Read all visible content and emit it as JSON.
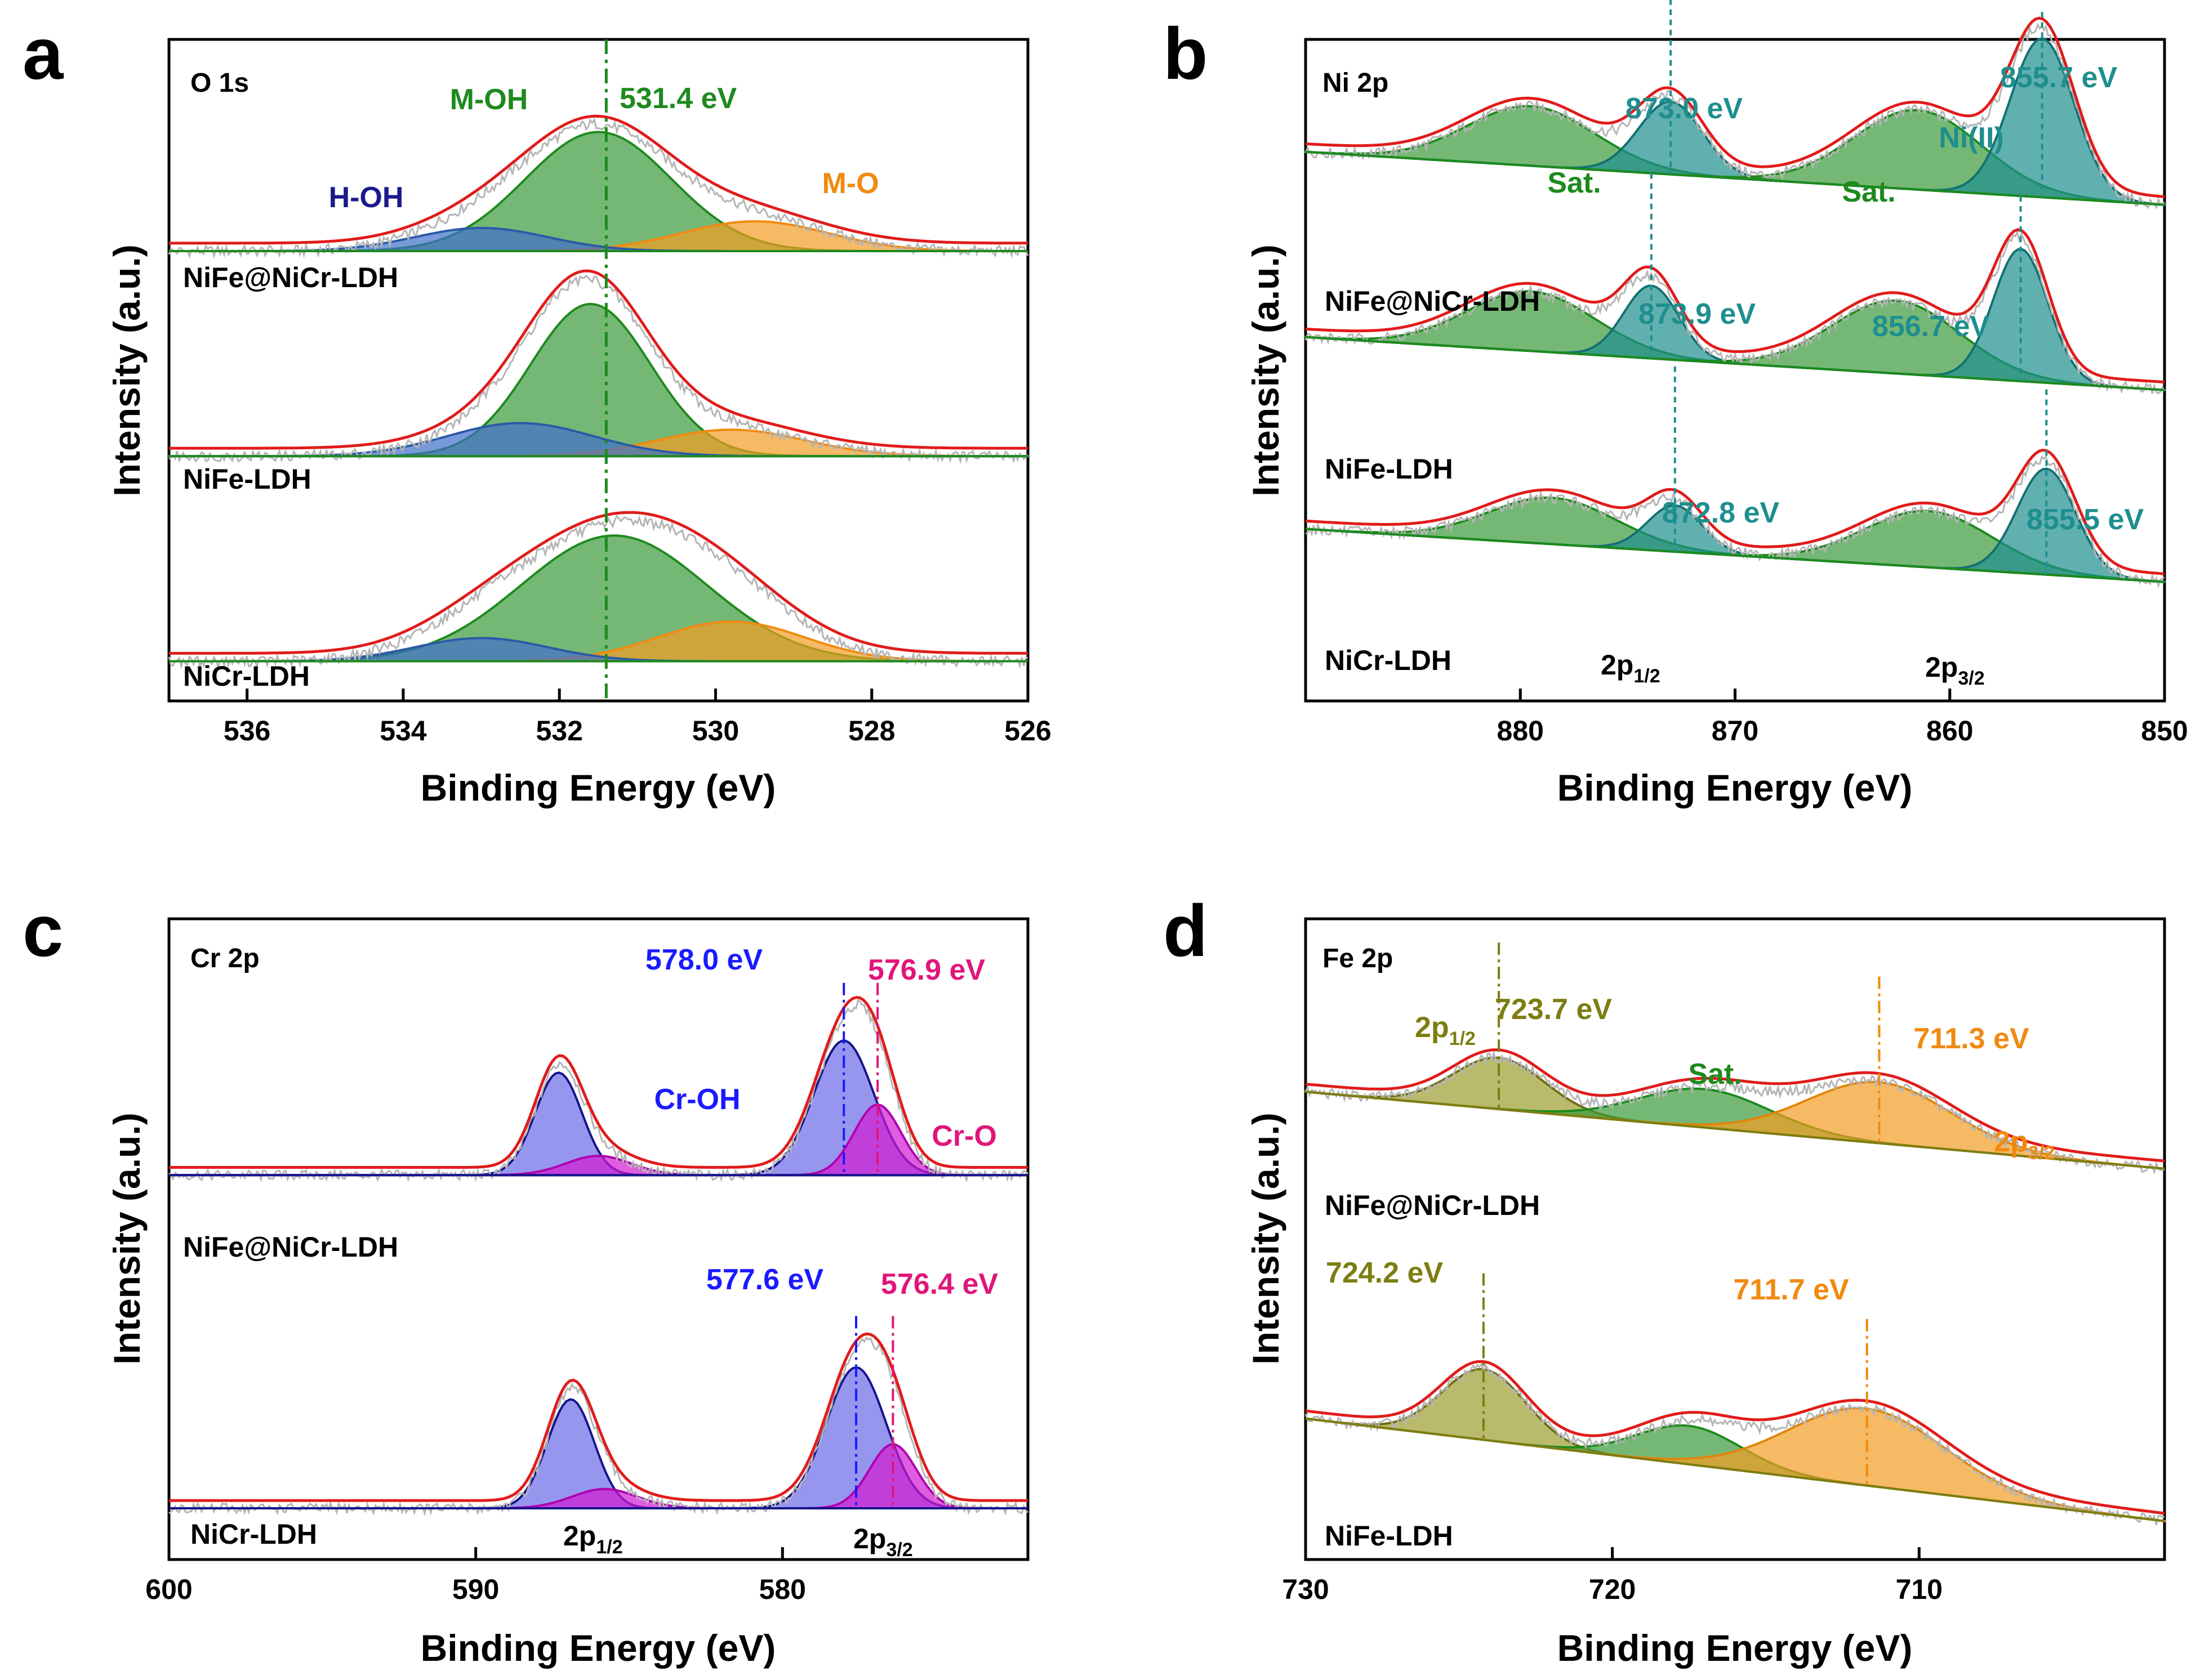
{
  "figure": {
    "y_axis_label": "Intensity (a.u.)",
    "x_axis_label": "Binding Energy (eV)"
  },
  "colors": {
    "envelope": "#e11b1b",
    "raw": "#b5b5b5",
    "baseline_green": "#1d8a1d",
    "baseline_olive": "#7d7d12",
    "green_fill": "#3a9a3a",
    "teal_fill": "#1e8e8e",
    "orange_fill": "#f39c22",
    "blue_fill": "#6a6ae8",
    "magenta_fill": "#d21ad2",
    "olive_fill": "#9c9c2e",
    "navy_text": "#1a1a8c",
    "green_text": "#1d8a1d",
    "teal_text": "#1e8e8e",
    "orange_text": "#f08a10",
    "blue_text": "#1a1aff",
    "magenta_text": "#e0157a",
    "olive_text": "#7d7d12"
  },
  "chart_data": [
    {
      "id": "a",
      "type": "line",
      "panel_letter": "a",
      "title": "O 1s",
      "xlabel": "Binding Energy (eV)",
      "ylabel": "Intensity (a.u.)",
      "xlim": [
        537,
        526
      ],
      "ylim": [
        0,
        100
      ],
      "xticks": [
        536,
        534,
        532,
        530,
        528,
        526
      ],
      "xtick_labels": [
        "536",
        "534",
        "532",
        "530",
        "528",
        "526"
      ],
      "ref_line": {
        "x": 531.4,
        "label": "531.4 eV",
        "color": "#1d8a1d",
        "dash": "dashdot"
      },
      "offsets": [
        {
          "sample": "NiFe@NiCr-LDH",
          "y": 68
        },
        {
          "sample": "NiFe-LDH",
          "y": 37
        },
        {
          "sample": "NiCr-LDH",
          "y": 6
        }
      ],
      "peak_labels": [
        {
          "text": "H-OH",
          "color": "#1a1a8c"
        },
        {
          "text": "M-OH",
          "color": "#1d8a1d"
        },
        {
          "text": "M-O",
          "color": "#f08a10"
        }
      ],
      "series": [
        {
          "name": "NiFe@NiCr-LDH",
          "offset": 68,
          "baseline": [
            0,
            0
          ],
          "peaks": [
            {
              "center": 531.5,
              "fwhm": 2.2,
              "height": 18,
              "fill": "#3a9a3a",
              "stroke": "#1d8a1d"
            },
            {
              "center": 529.5,
              "fwhm": 2.2,
              "height": 4.5,
              "fill": "#f39c22",
              "stroke": "#f08a10"
            },
            {
              "center": 533.0,
              "fwhm": 2.0,
              "height": 3.5,
              "fill": "#3e6fc9",
              "stroke": "#2a5aa8"
            }
          ]
        },
        {
          "name": "NiFe-LDH",
          "offset": 37,
          "baseline": [
            0,
            0
          ],
          "peaks": [
            {
              "center": 531.6,
              "fwhm": 1.8,
              "height": 23,
              "fill": "#3a9a3a",
              "stroke": "#1d8a1d"
            },
            {
              "center": 529.8,
              "fwhm": 2.2,
              "height": 4,
              "fill": "#f39c22",
              "stroke": "#f08a10"
            },
            {
              "center": 532.5,
              "fwhm": 2.2,
              "height": 5,
              "fill": "#3e6fc9",
              "stroke": "#2a5aa8"
            }
          ]
        },
        {
          "name": "NiCr-LDH",
          "offset": 6,
          "baseline": [
            0,
            0
          ],
          "peaks": [
            {
              "center": 531.3,
              "fwhm": 2.8,
              "height": 19,
              "fill": "#3a9a3a",
              "stroke": "#1d8a1d"
            },
            {
              "center": 529.8,
              "fwhm": 2.2,
              "height": 6,
              "fill": "#f39c22",
              "stroke": "#f08a10"
            },
            {
              "center": 533.0,
              "fwhm": 2.0,
              "height": 3.5,
              "fill": "#3e6fc9",
              "stroke": "#2a5aa8"
            }
          ]
        }
      ]
    },
    {
      "id": "b",
      "type": "line",
      "panel_letter": "b",
      "title": "Ni 2p",
      "xlabel": "Binding Energy (eV)",
      "ylabel": "Intensity (a.u.)",
      "xlim": [
        890,
        850
      ],
      "ylim": [
        0,
        100
      ],
      "xticks": [
        880,
        870,
        860,
        850
      ],
      "xtick_labels": [
        "880",
        "870",
        "860",
        "850"
      ],
      "offsets": [
        {
          "sample": "NiFe@NiCr-LDH",
          "y": 75
        },
        {
          "sample": "NiFe-LDH",
          "y": 47
        },
        {
          "sample": "NiCr-LDH",
          "y": 18
        }
      ],
      "spin_labels": [
        "2p1/2",
        "2p3/2"
      ],
      "text_labels": [
        {
          "text": "Sat.",
          "color": "#1d8a1d"
        },
        {
          "text": "Sat.",
          "color": "#1d8a1d"
        },
        {
          "text": "Ni(II)",
          "color": "#1e8e8e"
        }
      ],
      "energy_labels": [
        {
          "text": "873.0 eV",
          "x": 873.0,
          "color": "#1e8e8e"
        },
        {
          "text": "855.7 eV",
          "x": 855.7,
          "color": "#1e8e8e"
        },
        {
          "text": "873.9 eV",
          "x": 873.9,
          "color": "#1e8e8e"
        },
        {
          "text": "856.7 eV",
          "x": 856.7,
          "color": "#1e8e8e"
        },
        {
          "text": "872.8 eV",
          "x": 872.8,
          "color": "#1e8e8e"
        },
        {
          "text": "855.5 eV",
          "x": 855.5,
          "color": "#1e8e8e"
        }
      ],
      "series": [
        {
          "name": "NiFe@NiCr-LDH",
          "offset": 75,
          "baseline": [
            8,
            0
          ],
          "peaks": [
            {
              "center": 879.5,
              "fwhm": 7,
              "height": 9,
              "fill": "#3a9a3a",
              "stroke": "#1d8a1d"
            },
            {
              "center": 873.0,
              "fwhm": 3.5,
              "height": 11,
              "fill": "#1e8e8e",
              "stroke": "#137070"
            },
            {
              "center": 861.5,
              "fwhm": 7,
              "height": 12,
              "fill": "#3a9a3a",
              "stroke": "#1d8a1d"
            },
            {
              "center": 855.7,
              "fwhm": 3.5,
              "height": 24,
              "fill": "#1e8e8e",
              "stroke": "#137070"
            }
          ]
        },
        {
          "name": "NiFe-LDH",
          "offset": 47,
          "baseline": [
            8,
            0
          ],
          "peaks": [
            {
              "center": 879.5,
              "fwhm": 7,
              "height": 9,
              "fill": "#3a9a3a",
              "stroke": "#1d8a1d"
            },
            {
              "center": 873.9,
              "fwhm": 3,
              "height": 11,
              "fill": "#1e8e8e",
              "stroke": "#137070"
            },
            {
              "center": 862.5,
              "fwhm": 7,
              "height": 11,
              "fill": "#3a9a3a",
              "stroke": "#1d8a1d"
            },
            {
              "center": 856.7,
              "fwhm": 3,
              "height": 20,
              "fill": "#1e8e8e",
              "stroke": "#137070"
            }
          ]
        },
        {
          "name": "NiCr-LDH",
          "offset": 18,
          "baseline": [
            8,
            0
          ],
          "peaks": [
            {
              "center": 878.5,
              "fwhm": 7,
              "height": 7,
              "fill": "#3a9a3a",
              "stroke": "#1d8a1d"
            },
            {
              "center": 872.8,
              "fwhm": 3,
              "height": 7,
              "fill": "#1e8e8e",
              "stroke": "#137070"
            },
            {
              "center": 861.0,
              "fwhm": 7,
              "height": 8.5,
              "fill": "#3a9a3a",
              "stroke": "#1d8a1d"
            },
            {
              "center": 855.5,
              "fwhm": 3.2,
              "height": 16,
              "fill": "#1e8e8e",
              "stroke": "#137070"
            }
          ]
        }
      ]
    },
    {
      "id": "c",
      "type": "line",
      "panel_letter": "c",
      "title": "Cr 2p",
      "xlabel": "Binding Energy (eV)",
      "ylabel": "Intensity (a.u.)",
      "xlim": [
        600,
        572
      ],
      "ylim": [
        0,
        100
      ],
      "xticks": [
        600,
        590,
        580
      ],
      "xtick_labels": [
        "600",
        "590",
        "580"
      ],
      "offsets": [
        {
          "sample": "NiFe@NiCr-LDH",
          "y": 60
        },
        {
          "sample": "NiCr-LDH",
          "y": 8
        }
      ],
      "spin_labels": [
        "2p1/2",
        "2p3/2"
      ],
      "text_labels": [
        {
          "text": "Cr-OH",
          "color": "#1a1aff"
        },
        {
          "text": "Cr-O",
          "color": "#e0157a"
        }
      ],
      "energy_labels": [
        {
          "text": "578.0 eV",
          "x": 578.0,
          "color": "#1a1aff"
        },
        {
          "text": "576.9 eV",
          "x": 576.9,
          "color": "#e0157a"
        },
        {
          "text": "577.6 eV",
          "x": 577.6,
          "color": "#1a1aff"
        },
        {
          "text": "576.4 eV",
          "x": 576.4,
          "color": "#e0157a"
        }
      ],
      "series": [
        {
          "name": "NiFe@NiCr-LDH",
          "offset": 60,
          "baseline": [
            0,
            0
          ],
          "peaks": [
            {
              "center": 587.3,
              "fwhm": 1.8,
              "height": 16,
              "fill": "#6a6ae8",
              "stroke": "#14148c"
            },
            {
              "center": 578.0,
              "fwhm": 2.3,
              "height": 21,
              "fill": "#6a6ae8",
              "stroke": "#14148c"
            },
            {
              "center": 576.9,
              "fwhm": 1.8,
              "height": 11,
              "fill": "#d21ad2",
              "stroke": "#b000b0"
            },
            {
              "center": 586.0,
              "fwhm": 2.5,
              "height": 3,
              "fill": "#d21ad2",
              "stroke": "#b000b0"
            }
          ]
        },
        {
          "name": "NiCr-LDH",
          "offset": 8,
          "baseline": [
            0,
            0
          ],
          "peaks": [
            {
              "center": 586.9,
              "fwhm": 1.8,
              "height": 17,
              "fill": "#6a6ae8",
              "stroke": "#14148c"
            },
            {
              "center": 577.6,
              "fwhm": 2.3,
              "height": 22,
              "fill": "#6a6ae8",
              "stroke": "#14148c"
            },
            {
              "center": 576.4,
              "fwhm": 1.8,
              "height": 10,
              "fill": "#d21ad2",
              "stroke": "#b000b0"
            },
            {
              "center": 585.8,
              "fwhm": 2.5,
              "height": 3,
              "fill": "#d21ad2",
              "stroke": "#b000b0"
            }
          ]
        }
      ]
    },
    {
      "id": "d",
      "type": "line",
      "panel_letter": "d",
      "title": "Fe 2p",
      "xlabel": "Binding Energy (eV)",
      "ylabel": "Intensity (a.u.)",
      "xlim": [
        730,
        702
      ],
      "ylim": [
        0,
        100
      ],
      "xticks": [
        730,
        720,
        710
      ],
      "xtick_labels": [
        "730",
        "720",
        "710"
      ],
      "offsets": [
        {
          "sample": "NiFe@NiCr-LDH",
          "y": 61
        },
        {
          "sample": "NiFe-LDH",
          "y": 6
        }
      ],
      "spin_labels": [
        "2p1/2",
        "2p3/2"
      ],
      "text_labels": [
        {
          "text": "Sat.",
          "color": "#1d8a1d"
        }
      ],
      "energy_labels": [
        {
          "text": "723.7 eV",
          "x": 723.7,
          "color": "#7d7d12"
        },
        {
          "text": "711.3 eV",
          "x": 711.3,
          "color": "#f08a10"
        },
        {
          "text": "724.2 eV",
          "x": 724.2,
          "color": "#7d7d12"
        },
        {
          "text": "711.7 eV",
          "x": 711.7,
          "color": "#f08a10"
        }
      ],
      "series": [
        {
          "name": "NiFe@NiCr-LDH",
          "offset": 61,
          "baseline": [
            12,
            0
          ],
          "peaks": [
            {
              "center": 723.7,
              "fwhm": 3.5,
              "height": 8,
              "fill": "#9c9c2e",
              "stroke": "#6e6e10"
            },
            {
              "center": 717.0,
              "fwhm": 5,
              "height": 6,
              "fill": "#3a9a3a",
              "stroke": "#1d8a1d"
            },
            {
              "center": 711.3,
              "fwhm": 5.5,
              "height": 9.5,
              "fill": "#f39c22",
              "stroke": "#e0860a"
            }
          ]
        },
        {
          "name": "NiFe-LDH",
          "offset": 6,
          "baseline": [
            16,
            0
          ],
          "peaks": [
            {
              "center": 724.2,
              "fwhm": 3.2,
              "height": 11,
              "fill": "#9c9c2e",
              "stroke": "#6e6e10"
            },
            {
              "center": 717.5,
              "fwhm": 4,
              "height": 6,
              "fill": "#3a9a3a",
              "stroke": "#1d8a1d"
            },
            {
              "center": 711.7,
              "fwhm": 6,
              "height": 12,
              "fill": "#f39c22",
              "stroke": "#e0860a"
            }
          ]
        }
      ]
    }
  ]
}
